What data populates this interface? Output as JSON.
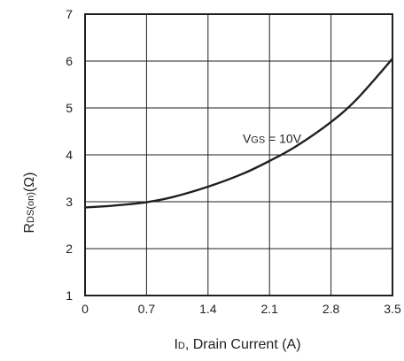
{
  "chart_data": {
    "type": "line",
    "xlabel": {
      "main": "I",
      "sub": "D",
      "rest": ", Drain Current (A)"
    },
    "ylabel": {
      "main": "R",
      "sub": "DS(on)",
      "rest": "(Ω)"
    },
    "xlim": [
      0,
      3.5
    ],
    "ylim": [
      1,
      7
    ],
    "x_ticks": [
      "0",
      "0.7",
      "1.4",
      "2.1",
      "2.8",
      "3.5"
    ],
    "y_ticks": [
      "1",
      "2",
      "3",
      "4",
      "5",
      "6",
      "7"
    ],
    "grid": true,
    "annotation": {
      "main": "V",
      "sub": "GS",
      "rest": " = 10V",
      "x": 2.4,
      "y": 4.35
    },
    "series": [
      {
        "x": [
          0,
          0.2,
          0.4,
          0.7,
          1.0,
          1.4,
          1.8,
          2.1,
          2.4,
          2.8,
          3.1,
          3.5
        ],
        "values": [
          2.88,
          2.9,
          2.93,
          2.99,
          3.1,
          3.32,
          3.6,
          3.87,
          4.18,
          4.7,
          5.2,
          6.05
        ]
      }
    ]
  }
}
